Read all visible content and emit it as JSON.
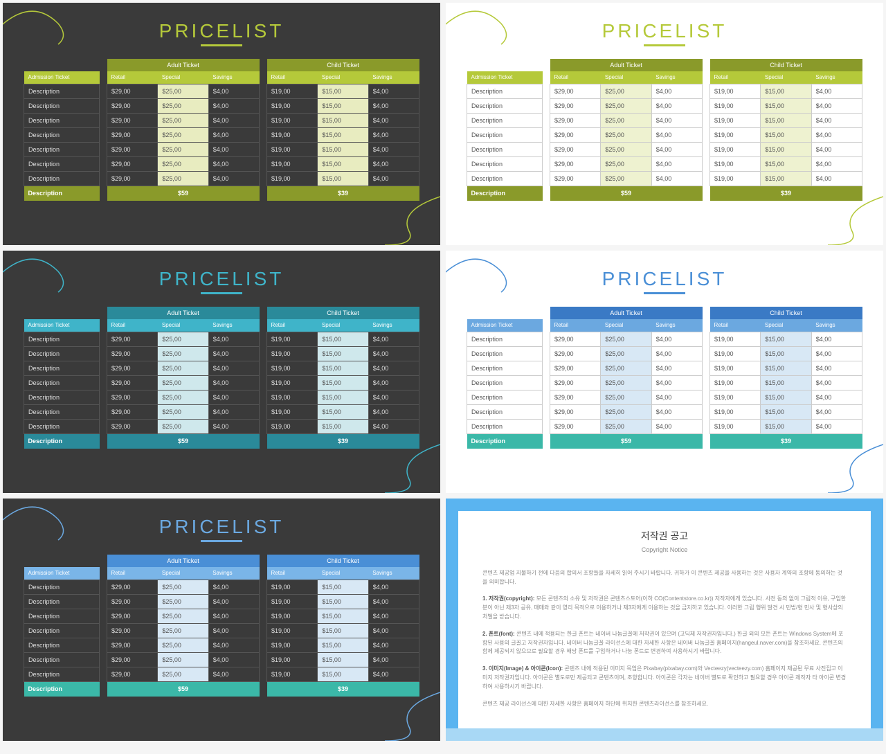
{
  "title": "PRICELIST",
  "table": {
    "label_header": "Admission  Ticket",
    "adult_header": "Adult  Ticket",
    "child_header": "Child  Ticket",
    "sub_headers": [
      "Retail",
      "Special",
      "Savings"
    ],
    "row_label": "Description",
    "adult_values": [
      "$29,00",
      "$25,00",
      "$4,00"
    ],
    "child_values": [
      "$19,00",
      "$15,00",
      "$4,00"
    ],
    "total_label": "Description",
    "adult_total": "$59",
    "child_total": "$39",
    "row_count": 7
  },
  "themes": [
    {
      "id": "olive-dark",
      "slide_bg": "dark",
      "title_color": "#b5c93a",
      "underline_color": "#b5c93a",
      "header_bg": "#8a9a2a",
      "header_text": "#ffffff",
      "subheader_bg": "#b5c93a",
      "subheader_text": "#ffffff",
      "tint_bg": "#e8ecc0",
      "tint_text": "#555555",
      "total_bg": "#8a9a2a",
      "curve_color": "#b5c93a"
    },
    {
      "id": "olive-light",
      "slide_bg": "light",
      "title_color": "#b5c93a",
      "underline_color": "#b5c93a",
      "header_bg": "#8a9a2a",
      "header_text": "#ffffff",
      "subheader_bg": "#b5c93a",
      "subheader_text": "#ffffff",
      "tint_bg": "#eef2d0",
      "tint_text": "#555555",
      "total_bg": "#8a9a2a",
      "curve_color": "#b5c93a"
    },
    {
      "id": "teal-dark",
      "slide_bg": "dark",
      "title_color": "#3fb4c9",
      "underline_color": "#3fb4c9",
      "header_bg": "#2a8a9a",
      "header_text": "#ffffff",
      "subheader_bg": "#3fb4c9",
      "subheader_text": "#ffffff",
      "tint_bg": "#cfe8ec",
      "tint_text": "#555555",
      "total_bg": "#2a8a9a",
      "curve_color": "#3fb4c9"
    },
    {
      "id": "blue-light",
      "slide_bg": "light",
      "title_color": "#4a8fd6",
      "underline_color": "#4a8fd6",
      "header_bg": "#3a7ac5",
      "header_text": "#ffffff",
      "subheader_bg": "#6ba8e0",
      "subheader_text": "#ffffff",
      "tint_bg": "#d8e8f5",
      "tint_text": "#555555",
      "total_bg": "#3bb8a8",
      "curve_color": "#4a8fd6"
    },
    {
      "id": "blue-dark",
      "slide_bg": "dark",
      "title_color": "#6ba8e0",
      "underline_color": "#6ba8e0",
      "header_bg": "#4a8fd6",
      "header_text": "#ffffff",
      "subheader_bg": "#7ab5e8",
      "subheader_text": "#ffffff",
      "tint_bg": "#d8e8f5",
      "tint_text": "#555555",
      "total_bg": "#3bb8a8",
      "curve_color": "#6ba8e0"
    }
  ],
  "copyright": {
    "title": "저작권 공고",
    "subtitle": "Copyright Notice",
    "intro": "콘텐츠 제공업 지불하기 전에 다음의 합의서 조항들을 자세히 읽어 주시기 바랍니다. 귀하가 이 콘텐츠 제공을 사용하는 것은 사용자 계약의 조항에 동의하는 것을 의미합니다.",
    "p1_label": "1. 저작권(copyright):",
    "p1": "모든 콘텐츠의 소유 및 저작권은 콘텐츠스토어(이하 CO(Contentstore.co.kr)) 저작자에게 있습니다. 사전 동의 없이 그림적 이유, 구입한 분이 아닌 제3자 공유, 매매와 같이 영리 목적으로 이용하거나 제3자에게 이용하는 것을 금지하고 있습니다. 이러한 그림 행위 발견 시 민법/형 민사 및 형사상의 처벌을 받습니다.",
    "p2_label": "2. 폰트(font):",
    "p2": "콘텐츠 내에 적용되는 한글 폰트는 네이버 나눔글꼴에 저작권이 있으며 (고딕체 저작권자입니다.) 한글 외의 모든 폰트는 Windows System에 포함된 사용의 글꼴고 저작권자입니다. 네이버 나눔글꼴 라이선스에 대한 자세한 사항은 네이버 나눔글꼴 홈페이지(hangeul.naver.com)을 참조하세요. 콘텐츠의 함께 제공되지 않으므로 필요할 경우 해당 폰트를 구입하거나 나눔 폰트로 변경하여 사용하시기 바랍니다.",
    "p3_label": "3. 이미지(Image) & 아이콘(Icon):",
    "p3": "콘텐츠 내에 적용된 이미지 목업은 Pixabay(pixabay.com)와 Vecteezy(vecteezy.com) 홈페이지 제공된 무료 사진집고 이미지 저작권자입니다. 아이콘은 별도로만 제공되고 콘텐츠이며, 조항합니다. 아이콘은 각자는 네이버 별도로 확인하고 필요할 경우 아이콘 제작자 타 아이콘 변경하여 사용하시기 바랍니다.",
    "outro": "콘텐츠 제공 라이선스에 대한 자세한 사항은 홈페이지 하단에 위치한 콘텐츠라이선스를 참조하세요."
  }
}
